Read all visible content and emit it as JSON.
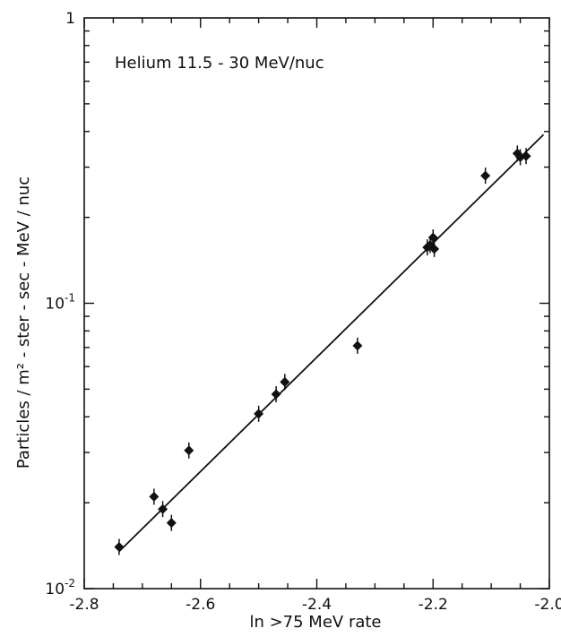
{
  "chart_data": {
    "type": "scatter",
    "title": "",
    "annotation": "Helium 11.5 - 30 MeV/nuc",
    "xlabel": "ln >75 MeV rate",
    "ylabel": "Particles / m² - ster - sec - MeV / nuc",
    "xlim": [
      -2.8,
      -2.0
    ],
    "ylim": [
      0.01,
      1
    ],
    "yscale": "log",
    "grid": false,
    "x_ticks": [
      -2.8,
      -2.6,
      -2.4,
      -2.2,
      -2.0
    ],
    "x_tick_labels": [
      "-2.8",
      "-2.6",
      "-2.4",
      "-2.2",
      "-2.0"
    ],
    "y_ticks": [
      {
        "value": 0.01,
        "base": "10",
        "exp": "-2"
      },
      {
        "value": 0.1,
        "base": "10",
        "exp": "-1"
      },
      {
        "value": 1,
        "base": "1",
        "exp": ""
      }
    ],
    "series": [
      {
        "marker": "diamond",
        "color": "#111111",
        "points": [
          {
            "x": -2.74,
            "y": 0.014
          },
          {
            "x": -2.68,
            "y": 0.021
          },
          {
            "x": -2.665,
            "y": 0.019
          },
          {
            "x": -2.65,
            "y": 0.017
          },
          {
            "x": -2.62,
            "y": 0.0305
          },
          {
            "x": -2.5,
            "y": 0.041
          },
          {
            "x": -2.47,
            "y": 0.048
          },
          {
            "x": -2.455,
            "y": 0.053
          },
          {
            "x": -2.33,
            "y": 0.071
          },
          {
            "x": -2.21,
            "y": 0.157
          },
          {
            "x": -2.205,
            "y": 0.16
          },
          {
            "x": -2.2,
            "y": 0.17
          },
          {
            "x": -2.198,
            "y": 0.155
          },
          {
            "x": -2.11,
            "y": 0.28
          },
          {
            "x": -2.055,
            "y": 0.335
          },
          {
            "x": -2.05,
            "y": 0.325
          },
          {
            "x": -2.04,
            "y": 0.328
          }
        ]
      }
    ],
    "fit_line": {
      "x": [
        -2.74,
        -2.01
      ],
      "y": [
        0.0135,
        0.39
      ]
    }
  }
}
